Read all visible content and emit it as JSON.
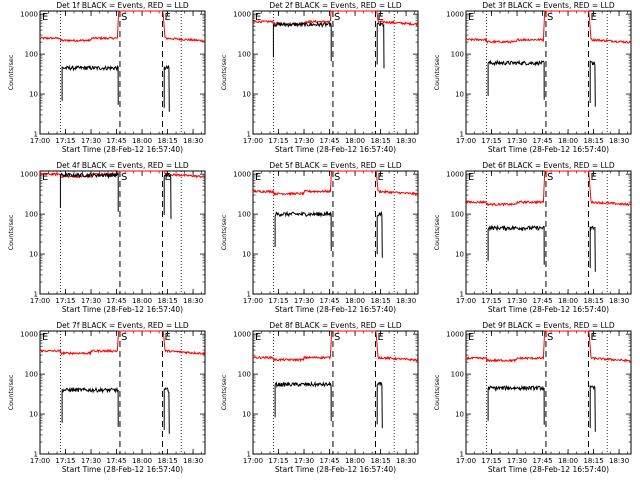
{
  "figure": {
    "tick_label_x": [
      "17:00",
      "17:15",
      "17:30",
      "17:45",
      "18:00",
      "18:15",
      "18:30"
    ],
    "tick_label_y": [
      "1",
      "10",
      "100",
      "1000"
    ],
    "marker_S": "S",
    "marker_E": "E",
    "colors": {
      "events": "#000000",
      "lld": "#ff0000",
      "axis": "#000000"
    }
  },
  "chart_data": [
    {
      "type": "line",
      "title": "Det 1f BLACK = Events, RED = LLD",
      "xlabel": "Start Time (28-Feb-12 16:57:40)",
      "ylabel": "Counts/sec",
      "ylog": true,
      "ylim": [
        1,
        1200
      ],
      "xlim": [
        "17:00",
        "18:37"
      ],
      "start_line": "17:47",
      "end_line": "18:12",
      "dotted_lines": [
        "17:12",
        "18:23"
      ],
      "series": [
        {
          "name": "Events",
          "level": 45,
          "start": "17:13",
          "end": "17:46",
          "resume": "18:13",
          "resume_end": "18:16"
        },
        {
          "name": "LLD",
          "level": 250,
          "peak": "17:47-18:11"
        }
      ]
    },
    {
      "type": "line",
      "title": "Det 2f BLACK = Events, RED = LLD",
      "xlabel": "Start Time (28-Feb-12 16:57:40)",
      "ylabel": "Counts/sec",
      "ylog": true,
      "ylim": [
        1,
        1200
      ],
      "xlim": [
        "17:00",
        "18:37"
      ],
      "start_line": "17:47",
      "end_line": "18:12",
      "dotted_lines": [
        "17:12",
        "18:23"
      ],
      "series": [
        {
          "name": "Events",
          "level": 550,
          "start": "17:12",
          "end": "17:46",
          "resume": "18:13",
          "resume_end": "18:17"
        },
        {
          "name": "LLD",
          "level": 650,
          "peak": "17:47-18:11"
        }
      ]
    },
    {
      "type": "line",
      "title": "Det 3f BLACK = Events, RED = LLD",
      "xlabel": "Start Time (28-Feb-12 16:57:40)",
      "ylabel": "Counts/sec",
      "ylog": true,
      "ylim": [
        1,
        1200
      ],
      "xlim": [
        "17:00",
        "18:37"
      ],
      "start_line": "17:47",
      "end_line": "18:12",
      "dotted_lines": [
        "17:12",
        "18:23"
      ],
      "series": [
        {
          "name": "Events",
          "level": 60,
          "start": "17:13",
          "end": "17:46",
          "resume": "18:13",
          "resume_end": "18:16"
        },
        {
          "name": "LLD",
          "level": 230,
          "peak": "17:47-18:11"
        }
      ]
    },
    {
      "type": "line",
      "title": "Det 4f BLACK = Events, RED = LLD",
      "xlabel": "Start Time (28-Feb-12 16:57:40)",
      "ylabel": "Counts/sec",
      "ylog": true,
      "ylim": [
        1,
        1200
      ],
      "xlim": [
        "17:00",
        "18:37"
      ],
      "start_line": "17:47",
      "end_line": "18:12",
      "dotted_lines": [
        "17:12",
        "18:23"
      ],
      "series": [
        {
          "name": "Events",
          "level": 950,
          "start": "17:12",
          "end": "17:46",
          "resume": "18:13",
          "resume_end": "18:17"
        },
        {
          "name": "LLD",
          "level": 1000,
          "peak": "17:47-18:11"
        }
      ]
    },
    {
      "type": "line",
      "title": "Det 5f BLACK = Events, RED = LLD",
      "xlabel": "Start Time (28-Feb-12 16:57:40)",
      "ylabel": "Counts/sec",
      "ylog": true,
      "ylim": [
        1,
        1200
      ],
      "xlim": [
        "17:00",
        "18:37"
      ],
      "start_line": "17:47",
      "end_line": "18:12",
      "dotted_lines": [
        "17:12",
        "18:23"
      ],
      "series": [
        {
          "name": "Events",
          "level": 100,
          "start": "17:13",
          "end": "17:46",
          "resume": "18:13",
          "resume_end": "18:16"
        },
        {
          "name": "LLD",
          "level": 370,
          "peak": "17:47-18:11"
        }
      ]
    },
    {
      "type": "line",
      "title": "Det 6f BLACK = Events, RED = LLD",
      "xlabel": "Start Time (28-Feb-12 16:57:40)",
      "ylabel": "Counts/sec",
      "ylog": true,
      "ylim": [
        1,
        1200
      ],
      "xlim": [
        "17:00",
        "18:37"
      ],
      "start_line": "17:47",
      "end_line": "18:12",
      "dotted_lines": [
        "17:12",
        "18:23"
      ],
      "series": [
        {
          "name": "Events",
          "level": 45,
          "start": "17:13",
          "end": "17:46",
          "resume": "18:13",
          "resume_end": "18:16"
        },
        {
          "name": "LLD",
          "level": 200,
          "peak": "17:47-18:11"
        }
      ]
    },
    {
      "type": "line",
      "title": "Det 7f BLACK = Events, RED = LLD",
      "xlabel": "Start Time (28-Feb-12 16:57:40)",
      "ylabel": "Counts/sec",
      "ylog": true,
      "ylim": [
        1,
        1200
      ],
      "xlim": [
        "17:00",
        "18:37"
      ],
      "start_line": "17:47",
      "end_line": "18:12",
      "dotted_lines": [
        "17:12",
        "18:23"
      ],
      "series": [
        {
          "name": "Events",
          "level": 40,
          "start": "17:13",
          "end": "17:46",
          "resume": "18:13",
          "resume_end": "18:16"
        },
        {
          "name": "LLD",
          "level": 380,
          "peak": "17:47-18:11"
        }
      ]
    },
    {
      "type": "line",
      "title": "Det 8f BLACK = Events, RED = LLD",
      "xlabel": "Start Time (28-Feb-12 16:57:40)",
      "ylabel": "Counts/sec",
      "ylog": true,
      "ylim": [
        1,
        1200
      ],
      "xlim": [
        "17:00",
        "18:37"
      ],
      "start_line": "17:47",
      "end_line": "18:12",
      "dotted_lines": [
        "17:12",
        "18:23"
      ],
      "series": [
        {
          "name": "Events",
          "level": 55,
          "start": "17:13",
          "end": "17:46",
          "resume": "18:13",
          "resume_end": "18:16"
        },
        {
          "name": "LLD",
          "level": 260,
          "peak": "17:47-18:11"
        }
      ]
    },
    {
      "type": "line",
      "title": "Det 9f BLACK = Events, RED = LLD",
      "xlabel": "Start Time (28-Feb-12 16:57:40)",
      "ylabel": "Counts/sec",
      "ylog": true,
      "ylim": [
        1,
        1200
      ],
      "xlim": [
        "17:00",
        "18:37"
      ],
      "start_line": "17:47",
      "end_line": "18:12",
      "dotted_lines": [
        "17:12",
        "18:23"
      ],
      "series": [
        {
          "name": "Events",
          "level": 45,
          "start": "17:13",
          "end": "17:46",
          "resume": "18:13",
          "resume_end": "18:16"
        },
        {
          "name": "LLD",
          "level": 250,
          "peak": "17:47-18:11"
        }
      ]
    }
  ]
}
